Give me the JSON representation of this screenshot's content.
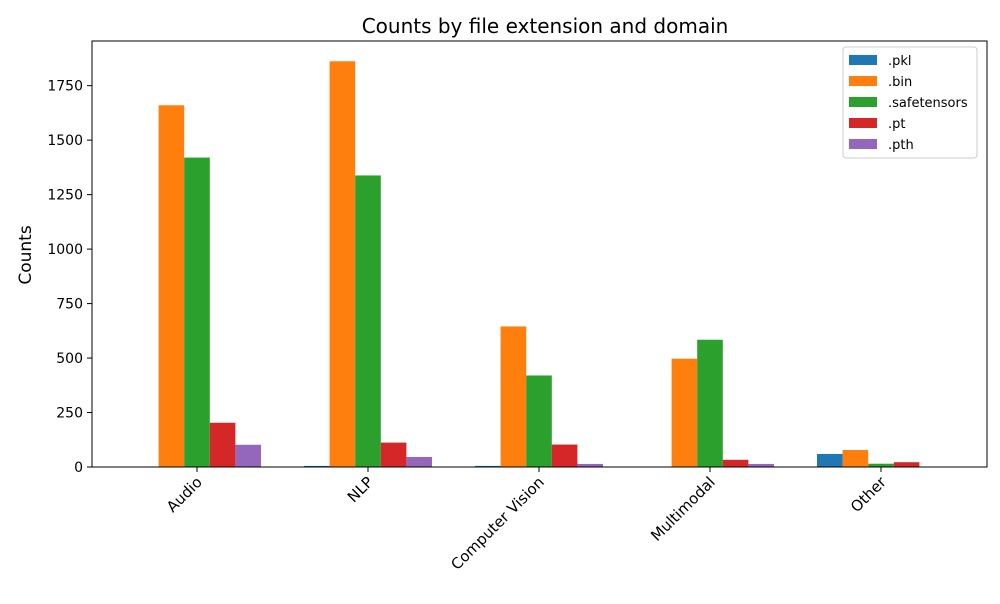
{
  "chart_data": {
    "type": "bar",
    "title": "Counts by file extension and domain",
    "xlabel": "",
    "ylabel": "Counts",
    "categories": [
      "Audio",
      "NLP",
      "Computer Vision",
      "Multimodal",
      "Other"
    ],
    "series": [
      {
        "name": ".pkl",
        "color": "#1f77b4",
        "values": [
          0,
          5,
          5,
          0,
          60
        ]
      },
      {
        "name": ".bin",
        "color": "#ff7f0e",
        "values": [
          1660,
          1862,
          645,
          497,
          78
        ]
      },
      {
        "name": ".safetensors",
        "color": "#2ca02c",
        "values": [
          1420,
          1338,
          420,
          584,
          15
        ]
      },
      {
        "name": ".pt",
        "color": "#d62728",
        "values": [
          203,
          112,
          103,
          33,
          22
        ]
      },
      {
        "name": ".pth",
        "color": "#9467bd",
        "values": [
          102,
          46,
          14,
          14,
          0
        ]
      }
    ],
    "yticks": [
      0,
      250,
      500,
      750,
      1000,
      1250,
      1500,
      1750
    ],
    "ylim": [
      0,
      1955
    ],
    "legend_position": "top-right",
    "grid": false
  }
}
